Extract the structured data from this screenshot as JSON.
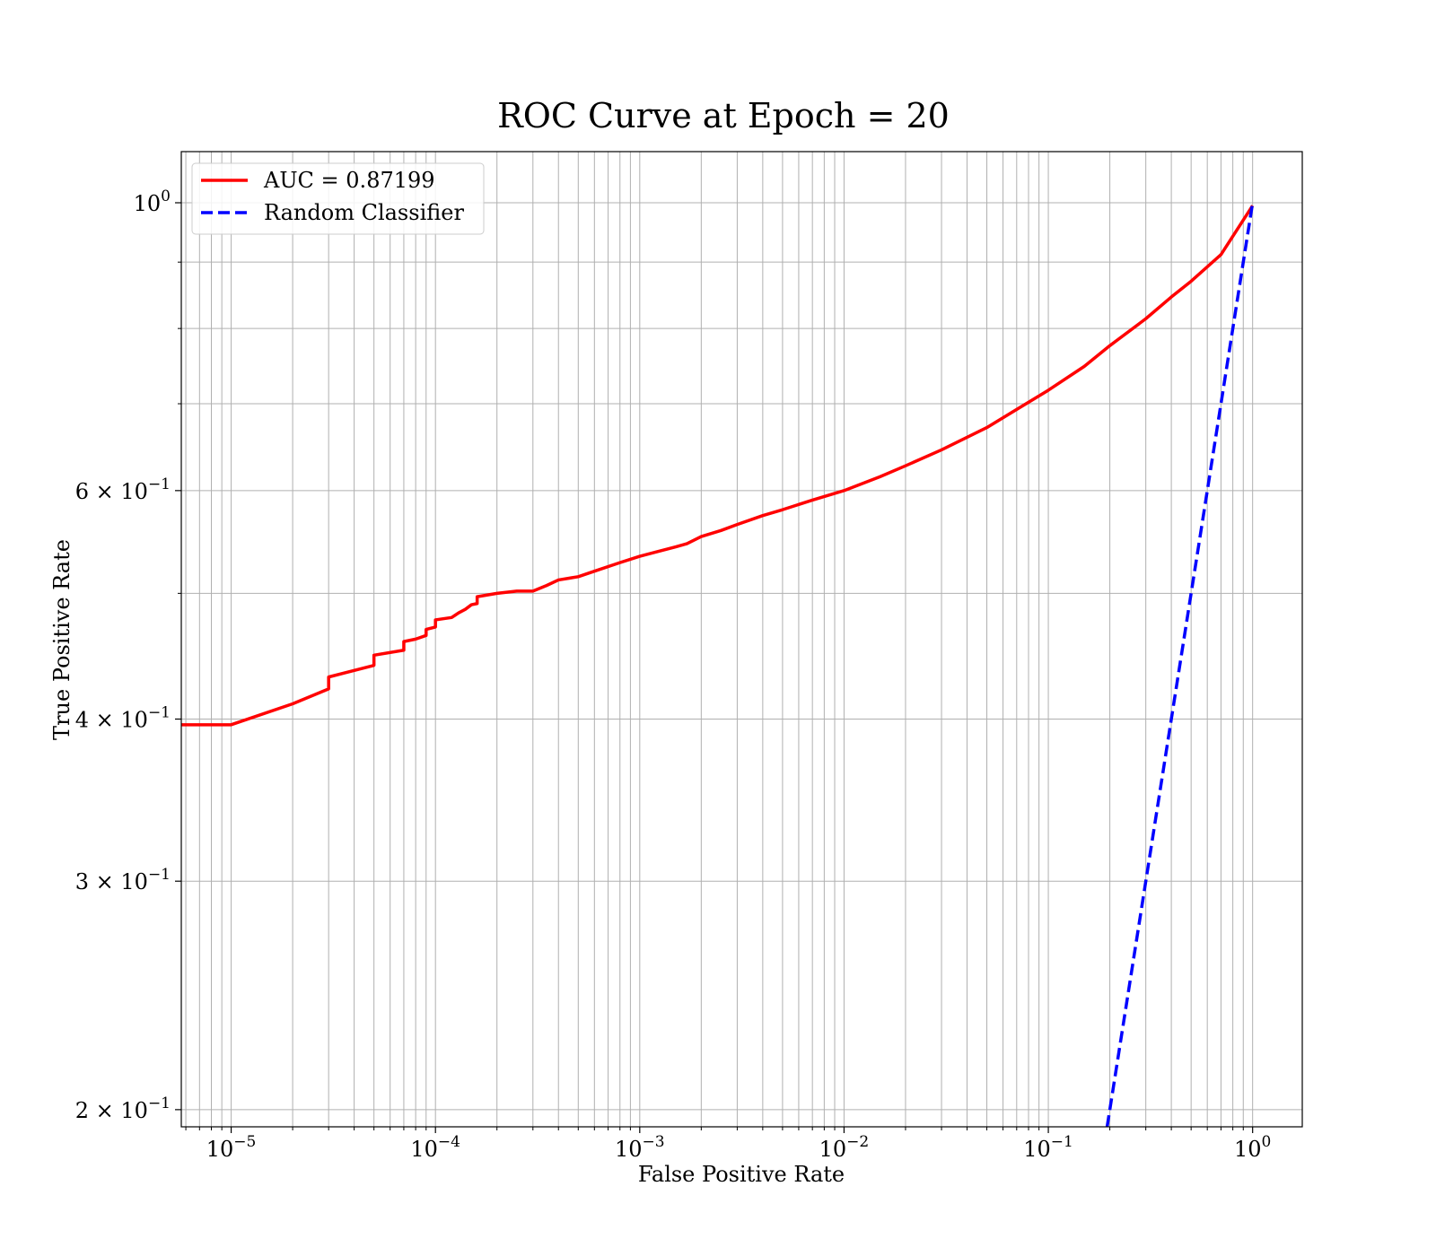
{
  "chart_data": {
    "type": "line",
    "title": "ROC Curve at Epoch = 20",
    "xlabel": "False Positive Rate",
    "ylabel": "True Positive Rate",
    "x_scale": "log",
    "y_scale": "log",
    "xlim": [
      5.7e-06,
      1.75
    ],
    "ylim": [
      0.194,
      1.095
    ],
    "grid": true,
    "legend_position": "upper-left",
    "x_ticks": [
      {
        "value": 1e-05,
        "base": "10",
        "exp": "−5"
      },
      {
        "value": 0.0001,
        "base": "10",
        "exp": "−4"
      },
      {
        "value": 0.001,
        "base": "10",
        "exp": "−3"
      },
      {
        "value": 0.01,
        "base": "10",
        "exp": "−2"
      },
      {
        "value": 0.1,
        "base": "10",
        "exp": "−1"
      },
      {
        "value": 1,
        "base": "10",
        "exp": "0"
      }
    ],
    "y_ticks": [
      {
        "value": 1,
        "base": "10",
        "exp": "0"
      },
      {
        "value": 0.6,
        "base": "6 × 10",
        "exp": "−1"
      },
      {
        "value": 0.4,
        "base": "4 × 10",
        "exp": "−1"
      },
      {
        "value": 0.3,
        "base": "3 × 10",
        "exp": "−1"
      },
      {
        "value": 0.2,
        "base": "2 × 10",
        "exp": "−1"
      }
    ],
    "series": [
      {
        "name": "AUC = 0.87199",
        "color": "#ff0000",
        "style": "solid",
        "x": [
          5.7e-06,
          1e-05,
          2e-05,
          3e-05,
          3e-05,
          5e-05,
          5e-05,
          7e-05,
          7e-05,
          8e-05,
          9e-05,
          9e-05,
          0.0001,
          0.0001,
          0.00012,
          0.00013,
          0.00014,
          0.00015,
          0.00016,
          0.00016,
          0.0002,
          0.00025,
          0.0003,
          0.00035,
          0.0004,
          0.0005,
          0.0006,
          0.0008,
          0.001,
          0.0012,
          0.0015,
          0.0017,
          0.002,
          0.0025,
          0.003,
          0.004,
          0.005,
          0.007,
          0.01,
          0.015,
          0.02,
          0.03,
          0.05,
          0.07,
          0.1,
          0.15,
          0.2,
          0.3,
          0.4,
          0.5,
          0.7,
          1.0
        ],
        "y": [
          0.396,
          0.396,
          0.411,
          0.422,
          0.431,
          0.44,
          0.448,
          0.452,
          0.459,
          0.461,
          0.464,
          0.469,
          0.471,
          0.477,
          0.479,
          0.483,
          0.486,
          0.49,
          0.491,
          0.497,
          0.5,
          0.502,
          0.502,
          0.507,
          0.512,
          0.515,
          0.52,
          0.528,
          0.534,
          0.538,
          0.543,
          0.546,
          0.553,
          0.559,
          0.565,
          0.574,
          0.58,
          0.59,
          0.6,
          0.615,
          0.627,
          0.645,
          0.671,
          0.693,
          0.717,
          0.748,
          0.776,
          0.814,
          0.846,
          0.87,
          0.912,
          0.995
        ]
      },
      {
        "name": "Random Classifier",
        "color": "#0000ff",
        "style": "dashed",
        "x": [
          0.194,
          1.0
        ],
        "y": [
          0.194,
          1.0
        ]
      }
    ]
  }
}
